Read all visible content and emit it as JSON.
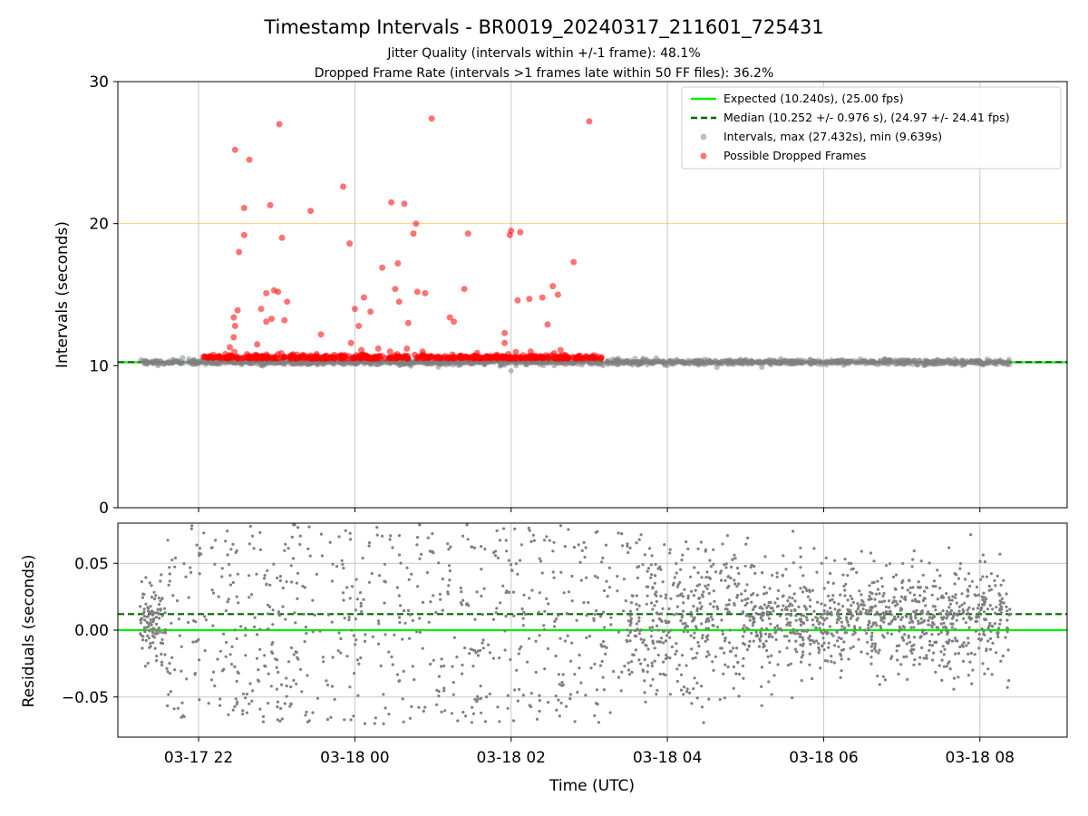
{
  "figure": {
    "title": "Timestamp Intervals - BR0019_20240317_211601_725431",
    "subtitle_1": "Jitter Quality (intervals within +/-1 frame): 48.1%",
    "subtitle_2": "Dropped Frame Rate (intervals >1 frames late within 50 FF files): 36.2%"
  },
  "chart_data": [
    {
      "id": "intervals",
      "type": "scatter",
      "xlabel": "",
      "ylabel": "Intervals (seconds)",
      "ylim": [
        0,
        30
      ],
      "yticks": [
        0,
        10,
        20,
        30
      ],
      "xrange": [
        "03-17 20:58",
        "03-18 09:07"
      ],
      "xticks": [
        {
          "value": "03-17 22:00",
          "label": "03-17 22"
        },
        {
          "value": "03-18 00:00",
          "label": "03-18 00"
        },
        {
          "value": "03-18 02:00",
          "label": "03-18 02"
        },
        {
          "value": "03-18 04:00",
          "label": "03-18 04"
        },
        {
          "value": "03-18 06:00",
          "label": "03-18 06"
        },
        {
          "value": "03-18 08:00",
          "label": "03-18 08"
        }
      ],
      "grid": true,
      "show_xticklabels": false,
      "legend_position": "upper-right",
      "reference_lines": [
        {
          "name": "Expected (10.240s), (25.00 fps)",
          "y": 10.24,
          "color": "#00ee00",
          "style": "solid"
        },
        {
          "name": "Median (10.252 +/- 0.976 s), (24.97 +/- 24.41 fps)",
          "y": 10.252,
          "color": "#006400",
          "style": "dashed"
        },
        {
          "name": "",
          "y": 20.0,
          "color": "#ffa500",
          "style": "solid"
        }
      ],
      "series": [
        {
          "name": "Intervals, max (27.432s), min (9.639s)",
          "color": "#808080",
          "x_start": "03-17 21:15",
          "x_end": "03-18 08:23",
          "y_center": 10.25,
          "y_max": 27.432,
          "y_min": 9.639
        },
        {
          "name": "Possible Dropped Frames",
          "color": "#ff0000",
          "x_start": "03-17 22:03",
          "x_end": "03-18 03:10",
          "points": [
            [
              "03-17 22:28",
              25.2
            ],
            [
              "03-17 22:39",
              24.5
            ],
            [
              "03-17 22:31",
              18.0
            ],
            [
              "03-17 22:35",
              21.1
            ],
            [
              "03-17 22:35",
              19.2
            ],
            [
              "03-17 22:27",
              13.4
            ],
            [
              "03-17 22:28",
              12.8
            ],
            [
              "03-17 22:30",
              13.9
            ],
            [
              "03-17 22:48",
              14.0
            ],
            [
              "03-17 22:55",
              21.3
            ],
            [
              "03-17 22:52",
              15.1
            ],
            [
              "03-17 22:58",
              15.3
            ],
            [
              "03-17 23:01",
              15.2
            ],
            [
              "03-17 23:02",
              27.0
            ],
            [
              "03-17 23:04",
              19.0
            ],
            [
              "03-17 23:08",
              14.5
            ],
            [
              "03-17 22:52",
              13.1
            ],
            [
              "03-17 22:56",
              13.3
            ],
            [
              "03-17 23:06",
              13.2
            ],
            [
              "03-17 23:26",
              20.9
            ],
            [
              "03-17 23:34",
              12.2
            ],
            [
              "03-17 23:51",
              22.6
            ],
            [
              "03-17 23:56",
              18.6
            ],
            [
              "03-18 00:00",
              14.0
            ],
            [
              "03-18 00:03",
              12.8
            ],
            [
              "03-18 00:07",
              14.8
            ],
            [
              "03-18 00:12",
              13.8
            ],
            [
              "03-18 00:21",
              16.9
            ],
            [
              "03-18 00:28",
              21.5
            ],
            [
              "03-18 00:33",
              17.2
            ],
            [
              "03-18 00:31",
              15.4
            ],
            [
              "03-18 00:34",
              14.5
            ],
            [
              "03-18 00:38",
              21.4
            ],
            [
              "03-18 00:41",
              13.0
            ],
            [
              "03-18 00:45",
              19.3
            ],
            [
              "03-18 00:47",
              20.0
            ],
            [
              "03-18 00:48",
              15.2
            ],
            [
              "03-18 00:54",
              15.1
            ],
            [
              "03-18 00:59",
              27.4
            ],
            [
              "03-18 01:13",
              13.4
            ],
            [
              "03-18 01:16",
              13.1
            ],
            [
              "03-18 01:24",
              15.4
            ],
            [
              "03-18 01:27",
              19.3
            ],
            [
              "03-18 01:55",
              12.3
            ],
            [
              "03-18 01:59",
              19.2
            ],
            [
              "03-18 02:00",
              19.5
            ],
            [
              "03-18 02:07",
              19.4
            ],
            [
              "03-18 01:55",
              11.6
            ],
            [
              "03-18 02:05",
              14.6
            ],
            [
              "03-18 02:14",
              14.7
            ],
            [
              "03-18 02:24",
              14.8
            ],
            [
              "03-18 02:28",
              12.9
            ],
            [
              "03-18 02:32",
              15.6
            ],
            [
              "03-18 02:36",
              15.0
            ],
            [
              "03-18 02:48",
              17.3
            ],
            [
              "03-18 03:00",
              27.2
            ],
            [
              "03-18 00:18",
              11.2
            ],
            [
              "03-18 00:27",
              11.0
            ],
            [
              "03-18 00:40",
              11.2
            ],
            [
              "03-18 00:52",
              11.0
            ],
            [
              "03-17 23:57",
              11.6
            ],
            [
              "03-17 22:24",
              11.3
            ],
            [
              "03-17 22:27",
              12.0
            ],
            [
              "03-17 22:45",
              11.5
            ],
            [
              "03-18 02:15",
              11.0
            ],
            [
              "03-18 02:38",
              11.1
            ],
            [
              "03-18 01:34",
              10.9
            ],
            [
              "03-18 00:05",
              11.1
            ]
          ]
        }
      ]
    },
    {
      "id": "residuals",
      "type": "scatter",
      "xlabel": "Time (UTC)",
      "ylabel": "Residuals (seconds)",
      "ylim": [
        -0.08,
        0.08
      ],
      "yticks": [
        {
          "value": -0.05,
          "label": "−0.05"
        },
        {
          "value": 0.0,
          "label": "0.00"
        },
        {
          "value": 0.05,
          "label": "0.05"
        }
      ],
      "xrange": [
        "03-17 20:58",
        "03-18 09:07"
      ],
      "xticks": [
        {
          "value": "03-17 22:00",
          "label": "03-17 22"
        },
        {
          "value": "03-18 00:00",
          "label": "03-18 00"
        },
        {
          "value": "03-18 02:00",
          "label": "03-18 02"
        },
        {
          "value": "03-18 04:00",
          "label": "03-18 04"
        },
        {
          "value": "03-18 06:00",
          "label": "03-18 06"
        },
        {
          "value": "03-18 08:00",
          "label": "03-18 08"
        }
      ],
      "grid": true,
      "reference_lines": [
        {
          "y": 0.0,
          "color": "#00ee00",
          "style": "solid"
        },
        {
          "y": 0.012,
          "color": "#006400",
          "style": "dashed"
        }
      ],
      "series": [
        {
          "color": "#808080",
          "x_start": "03-17 21:15",
          "x_end": "03-18 08:23",
          "segments": [
            {
              "x_start": "03-17 21:15",
              "x_end": "03-17 21:35",
              "y_center": 0.005,
              "y_spread": 0.025
            },
            {
              "x_start": "03-17 21:35",
              "x_end": "03-18 03:30",
              "y_center": 0.005,
              "y_spread": 0.075
            },
            {
              "x_start": "03-18 03:30",
              "x_end": "03-18 05:00",
              "y_center": 0.01,
              "y_spread": 0.055
            },
            {
              "x_start": "03-18 05:00",
              "x_end": "03-18 08:23",
              "y_center": 0.008,
              "y_spread": 0.038
            }
          ]
        }
      ]
    }
  ]
}
